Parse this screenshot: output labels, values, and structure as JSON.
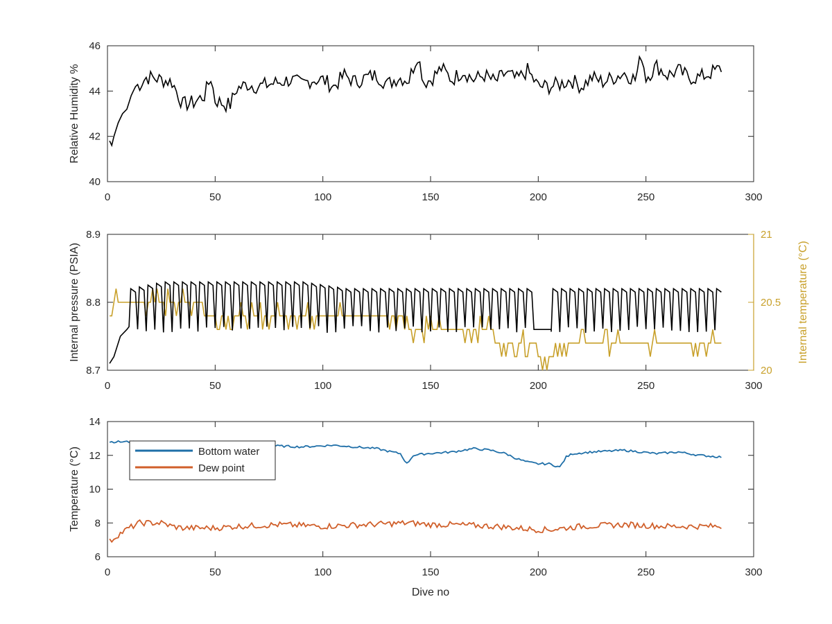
{
  "chart_data": [
    {
      "type": "line",
      "title": "",
      "xlabel": "",
      "ylabel": "Relative Humidity %",
      "xlim": [
        0,
        300
      ],
      "ylim": [
        40,
        46
      ],
      "xticks": [
        0,
        50,
        100,
        150,
        200,
        250,
        300
      ],
      "yticks": [
        40,
        42,
        44,
        46
      ],
      "grid": false,
      "colors": {
        "line": "#000000"
      },
      "series": [
        {
          "x": [
            1,
            2,
            3,
            5,
            7,
            9,
            11,
            13,
            15,
            18,
            21,
            25,
            30,
            35,
            40,
            45,
            48,
            50,
            55,
            57,
            60,
            65,
            70,
            75,
            80,
            85,
            90,
            95,
            100,
            105,
            110,
            115,
            120,
            125,
            130,
            135,
            140,
            144,
            147,
            150,
            155,
            160,
            165,
            170,
            175,
            180,
            185,
            190,
            195,
            200,
            205,
            210,
            215,
            220,
            225,
            230,
            235,
            240,
            245,
            248,
            250,
            255,
            260,
            265,
            270,
            275,
            280,
            285
          ],
          "values": [
            41.8,
            41.6,
            42.0,
            42.6,
            43.0,
            43.2,
            43.8,
            44.2,
            44.3,
            44.6,
            44.6,
            44.5,
            44.4,
            43.4,
            43.5,
            43.8,
            44.6,
            43.6,
            43.4,
            43.4,
            44.1,
            44.3,
            44.2,
            44.3,
            44.4,
            44.5,
            44.3,
            44.5,
            44.5,
            44.2,
            44.7,
            44.4,
            44.6,
            44.7,
            44.3,
            44.6,
            44.5,
            45.6,
            44.4,
            44.5,
            45.0,
            44.5,
            44.9,
            44.5,
            44.7,
            44.4,
            44.8,
            44.5,
            44.9,
            44.2,
            44.2,
            44.3,
            44.5,
            44.2,
            44.6,
            44.4,
            44.6,
            44.8,
            44.5,
            45.6,
            44.6,
            45.1,
            44.7,
            44.9,
            44.6,
            44.6,
            44.8,
            45.0
          ]
        }
      ]
    },
    {
      "type": "line",
      "title": "",
      "xlabel": "",
      "ylabel": "Internal pressure (PSIA)",
      "ylabel_right": "Internal temperature (°C)",
      "xlim": [
        0,
        300
      ],
      "ylim": [
        8.7,
        8.9
      ],
      "ylim_right": [
        20,
        21
      ],
      "xticks": [
        0,
        50,
        100,
        150,
        200,
        250,
        300
      ],
      "yticks": [
        "8.7",
        "8.8",
        "8.9"
      ],
      "yticks_right": [
        "20",
        "20.5",
        "21"
      ],
      "grid": false,
      "colors": {
        "pressure": "#000000",
        "temperature": "#c8a02a"
      },
      "series": [
        {
          "axis": "left",
          "description": "pressure: oscillates between ~8.76 and ~8.82-8.83 once per ~4 dives after an initial rise from 8.71",
          "x_range": [
            1,
            285
          ],
          "low": 8.76,
          "high_by_dive": [
            [
              10,
              8.82
            ],
            [
              25,
              8.83
            ],
            [
              60,
              8.83
            ],
            [
              90,
              8.83
            ],
            [
              110,
              8.82
            ],
            [
              140,
              8.82
            ],
            [
              160,
              8.82
            ],
            [
              190,
              8.82
            ],
            [
              210,
              8.82
            ],
            [
              240,
              8.82
            ],
            [
              285,
              8.82
            ]
          ],
          "initial": [
            [
              1,
              8.71
            ],
            [
              3,
              8.72
            ],
            [
              6,
              8.75
            ],
            [
              9,
              8.76
            ]
          ],
          "flat_segments": [
            [
              196,
              205,
              8.76
            ]
          ]
        },
        {
          "axis": "right",
          "description": "internal temperature, step-like",
          "steps": [
            [
              1,
              20.4
            ],
            [
              3,
              20.5
            ],
            [
              10,
              20.5
            ],
            [
              22,
              20.5
            ],
            [
              40,
              20.5
            ],
            [
              45,
              20.4
            ],
            [
              60,
              20.4
            ],
            [
              75,
              20.4
            ],
            [
              100,
              20.4
            ],
            [
              120,
              20.4
            ],
            [
              140,
              20.3
            ],
            [
              170,
              20.3
            ],
            [
              175,
              20.3
            ],
            [
              180,
              20.2
            ],
            [
              195,
              20.2
            ],
            [
              200,
              20.1
            ],
            [
              212,
              20.2
            ],
            [
              230,
              20.2
            ],
            [
              285,
              20.2
            ]
          ]
        }
      ]
    },
    {
      "type": "line",
      "title": "",
      "xlabel": "Dive no",
      "ylabel": "Temperature (°C)",
      "xlim": [
        0,
        300
      ],
      "ylim": [
        6,
        14
      ],
      "xticks": [
        0,
        50,
        100,
        150,
        200,
        250,
        300
      ],
      "yticks": [
        6,
        8,
        10,
        12,
        14
      ],
      "grid": false,
      "legend": {
        "placement": "top-left"
      },
      "series": [
        {
          "name": "Bottom water",
          "color": "#1f6fa8",
          "x": [
            1,
            10,
            20,
            35,
            50,
            70,
            90,
            105,
            115,
            125,
            132,
            136,
            139,
            142,
            148,
            160,
            170,
            178,
            185,
            190,
            195,
            200,
            205,
            210,
            213,
            216,
            225,
            240,
            255,
            265,
            275,
            285
          ],
          "values": [
            12.8,
            12.8,
            12.7,
            12.7,
            12.6,
            12.6,
            12.5,
            12.6,
            12.5,
            12.4,
            12.2,
            12.1,
            11.5,
            12.0,
            12.1,
            12.2,
            12.4,
            12.3,
            12.1,
            11.8,
            11.6,
            11.5,
            11.5,
            11.3,
            11.9,
            12.1,
            12.2,
            12.3,
            12.1,
            12.2,
            12.0,
            11.9
          ]
        },
        {
          "name": "Dew point",
          "color": "#d05f2a",
          "x": [
            1,
            5,
            10,
            15,
            20,
            25,
            30,
            35,
            40,
            50,
            60,
            80,
            100,
            120,
            140,
            150,
            160,
            180,
            200,
            205,
            220,
            240,
            260,
            285
          ],
          "values": [
            6.9,
            7.3,
            7.7,
            8.0,
            8.0,
            8.0,
            7.8,
            7.7,
            7.7,
            7.7,
            7.8,
            7.9,
            7.8,
            7.9,
            8.0,
            7.9,
            7.9,
            7.8,
            7.6,
            7.6,
            7.8,
            7.9,
            7.8,
            7.8
          ]
        }
      ]
    }
  ]
}
